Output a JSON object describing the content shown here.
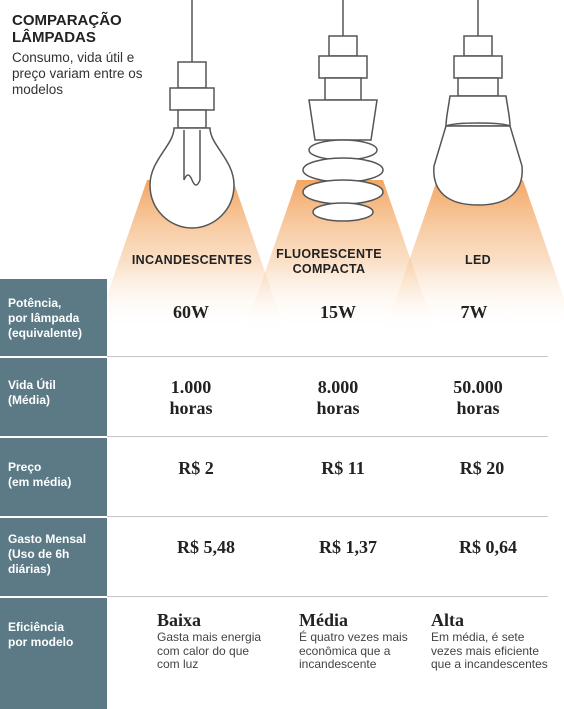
{
  "header": {
    "title_line1": "COMPARAÇÃO",
    "title_line2": "LÂMPADAS",
    "subtitle": "Consumo, vida útil e preço variam entre os modelos"
  },
  "columns": [
    {
      "name": "INCANDESCENTES",
      "name_line2": ""
    },
    {
      "name": "FLUORESCENTE",
      "name_line2": "COMPACTA"
    },
    {
      "name": "LED",
      "name_line2": ""
    }
  ],
  "rows": [
    {
      "label": [
        "Potência,",
        "por lâmpada",
        "(equivalente)"
      ],
      "values": [
        [
          "60W"
        ],
        [
          "15W"
        ],
        [
          "7W"
        ]
      ]
    },
    {
      "label": [
        "Vida Útil",
        "(Média)"
      ],
      "values": [
        [
          "1.000",
          "horas"
        ],
        [
          "8.000",
          "horas"
        ],
        [
          "50.000",
          "horas"
        ]
      ]
    },
    {
      "label": [
        "Preço",
        "(em média)"
      ],
      "values": [
        [
          "R$ 2"
        ],
        [
          "R$ 11"
        ],
        [
          "R$ 20"
        ]
      ]
    },
    {
      "label": [
        "Gasto Mensal",
        "(Uso de 6h",
        "diárias)"
      ],
      "values": [
        [
          "R$ 5,48"
        ],
        [
          "R$ 1,37"
        ],
        [
          "R$ 0,64"
        ]
      ]
    }
  ],
  "efficiency": {
    "label": [
      "Eficiência",
      "por modelo"
    ],
    "items": [
      {
        "level": "Baixa",
        "desc": [
          "Gasta mais energia",
          "com calor do que",
          "com luz"
        ]
      },
      {
        "level": "Média",
        "desc": [
          "É quatro vezes mais",
          "econômica que a",
          "incandescente"
        ]
      },
      {
        "level": "Alta",
        "desc": [
          "Em média, é sete",
          "vezes mais eficiente",
          "que a incandescentes"
        ]
      }
    ]
  },
  "colors": {
    "label_bg": "#5b7a85",
    "glow": "#f2a25c",
    "line": "#bfc7cb"
  }
}
